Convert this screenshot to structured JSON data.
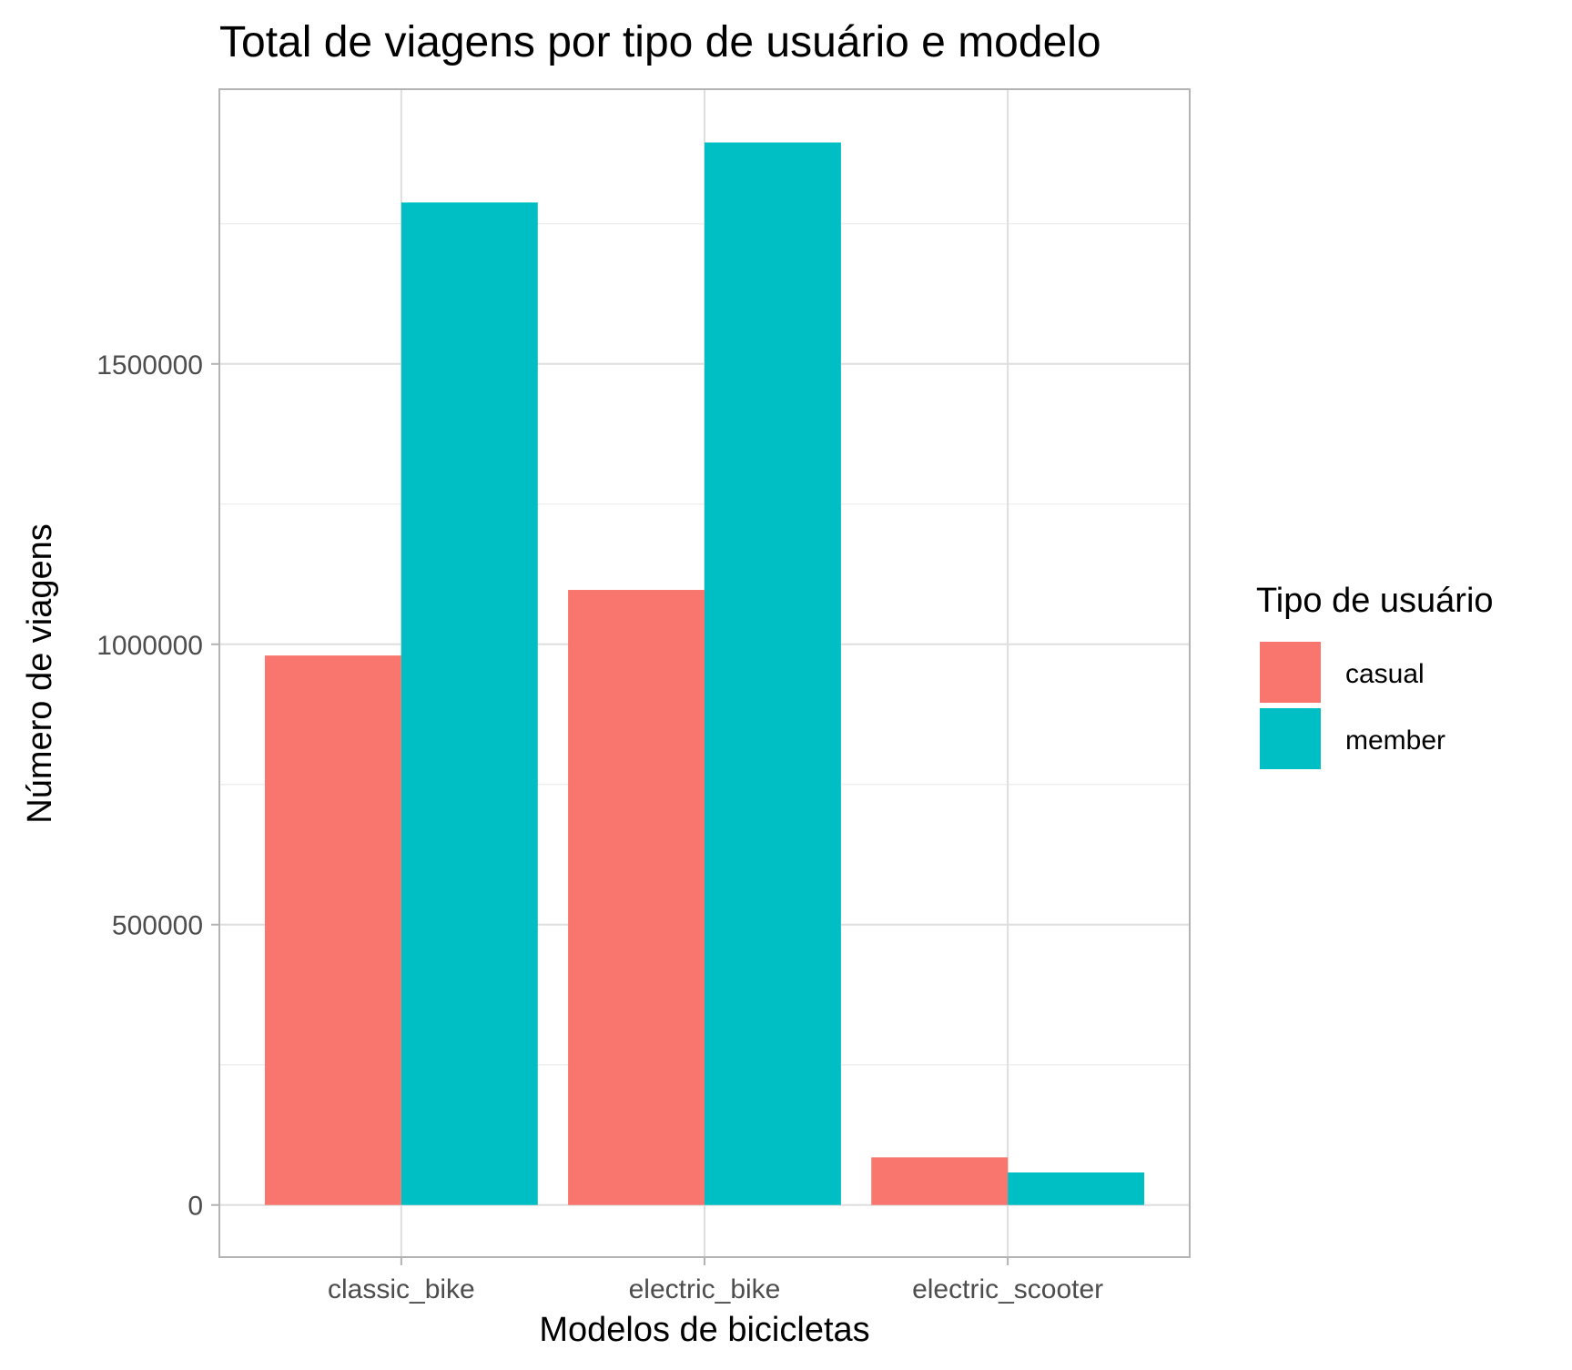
{
  "chart_data": {
    "type": "bar",
    "title": "Total de viagens por tipo de usuário e modelo",
    "xlabel": "Modelos de bicicletas",
    "ylabel": "Número de viagens",
    "categories": [
      "classic_bike",
      "electric_bike",
      "electric_scooter"
    ],
    "series": [
      {
        "name": "casual",
        "color": "#F8766D",
        "values": [
          980000,
          1097000,
          85000
        ]
      },
      {
        "name": "member",
        "color": "#00BFC4",
        "values": [
          1788000,
          1895000,
          58000
        ]
      }
    ],
    "y_ticks": [
      0,
      500000,
      1000000,
      1500000
    ],
    "y_tick_labels": [
      "0",
      "500000",
      "1000000",
      "1500000"
    ],
    "ylim": [
      -93000,
      1990000
    ],
    "grid": true,
    "legend": {
      "title": "Tipo de usuário",
      "position": "right",
      "entries": [
        "casual",
        "member"
      ]
    }
  }
}
